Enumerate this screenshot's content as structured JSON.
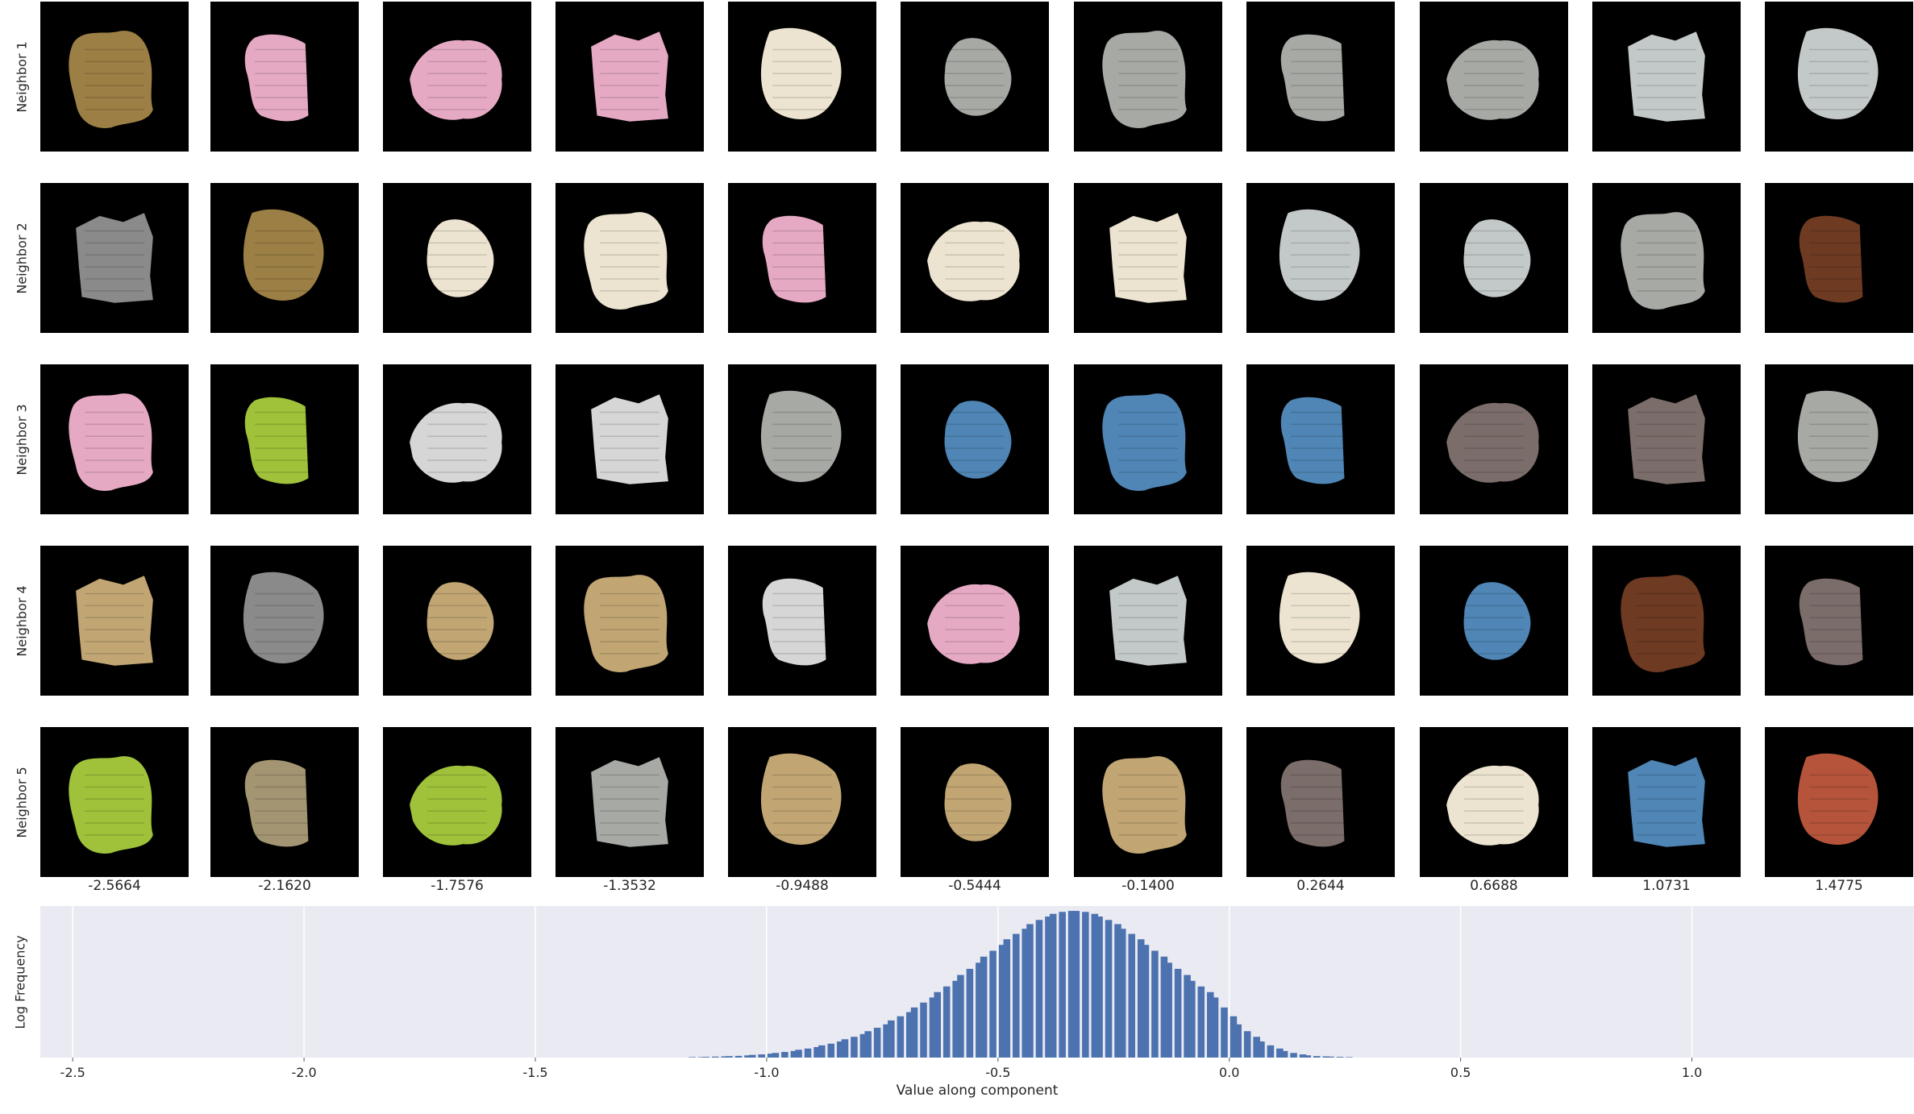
{
  "grid": {
    "row_labels": [
      "Neighbor 1",
      "Neighbor 2",
      "Neighbor 3",
      "Neighbor 4",
      "Neighbor 5"
    ],
    "column_values": [
      "-2.5664",
      "-2.1620",
      "-1.7576",
      "-1.3532",
      "-0.9488",
      "-0.5444",
      "-0.1400",
      "0.2644",
      "0.6688",
      "1.0731",
      "1.4775"
    ],
    "textures": {
      "olive_knit": "#9c7f45",
      "pink_knit": "#e6a9c4",
      "cream_relief": "#ece4d0",
      "gray_pattern": "#a7a9a5",
      "light_gray_stripes": "#c3c9c9",
      "gray_blob": "#8a8a8a",
      "brown_wood": "#6e3a22",
      "lime_knit": "#9fc23a",
      "white_grid": "#d6d6d6",
      "blue_crochet": "#4f86b6",
      "taupe_fabric": "#7b6d6a",
      "tan_fabric": "#c1a674",
      "lace_fabric": "#a39572",
      "rust_tiles": "#b5543a"
    },
    "cells": [
      [
        "olive_knit",
        "pink_knit",
        "pink_knit",
        "pink_knit",
        "cream_relief",
        "gray_pattern",
        "gray_pattern",
        "gray_pattern",
        "gray_pattern",
        "light_gray_stripes",
        "light_gray_stripes"
      ],
      [
        "gray_blob",
        "olive_knit",
        "cream_relief",
        "cream_relief",
        "pink_knit",
        "cream_relief",
        "cream_relief",
        "light_gray_stripes",
        "light_gray_stripes",
        "gray_pattern",
        "brown_wood"
      ],
      [
        "pink_knit",
        "lime_knit",
        "white_grid",
        "white_grid",
        "gray_pattern",
        "blue_crochet",
        "blue_crochet",
        "blue_crochet",
        "taupe_fabric",
        "taupe_fabric",
        "gray_pattern"
      ],
      [
        "tan_fabric",
        "gray_blob",
        "tan_fabric",
        "tan_fabric",
        "white_grid",
        "pink_knit",
        "light_gray_stripes",
        "cream_relief",
        "blue_crochet",
        "brown_wood",
        "taupe_fabric"
      ],
      [
        "lime_knit",
        "lace_fabric",
        "lime_knit",
        "gray_pattern",
        "tan_fabric",
        "tan_fabric",
        "tan_fabric",
        "taupe_fabric",
        "cream_relief",
        "blue_crochet",
        "rust_tiles"
      ]
    ]
  },
  "chart_data": {
    "type": "bar",
    "title": "",
    "xlabel": "Value along component",
    "ylabel": "Log Frequency",
    "xlim": [
      -2.57,
      1.48
    ],
    "ylim": [
      0,
      6.2
    ],
    "x_ticks": [
      "-2.5",
      "-2.0",
      "-1.5",
      "-1.0",
      "-0.5",
      "0.0",
      "0.5",
      "1.0"
    ],
    "grid": true,
    "colors": {
      "bar": "#4c72b0",
      "background": "#eaeaf2",
      "grid": "#ffffff"
    },
    "bin_width": 0.0166,
    "x": [
      -1.16,
      -1.14,
      -1.13,
      -1.11,
      -1.09,
      -1.08,
      -1.06,
      -1.04,
      -1.03,
      -1.01,
      -0.99,
      -0.98,
      -0.96,
      -0.94,
      -0.93,
      -0.91,
      -0.89,
      -0.88,
      -0.86,
      -0.84,
      -0.83,
      -0.81,
      -0.79,
      -0.78,
      -0.76,
      -0.74,
      -0.73,
      -0.71,
      -0.69,
      -0.68,
      -0.66,
      -0.64,
      -0.63,
      -0.61,
      -0.59,
      -0.58,
      -0.56,
      -0.54,
      -0.53,
      -0.51,
      -0.49,
      -0.48,
      -0.46,
      -0.44,
      -0.43,
      -0.41,
      -0.39,
      -0.38,
      -0.36,
      -0.34,
      -0.33,
      -0.31,
      -0.29,
      -0.28,
      -0.26,
      -0.24,
      -0.23,
      -0.21,
      -0.19,
      -0.18,
      -0.16,
      -0.14,
      -0.13,
      -0.11,
      -0.09,
      -0.08,
      -0.06,
      -0.04,
      -0.03,
      -0.01,
      0.01,
      0.02,
      0.04,
      0.06,
      0.07,
      0.09,
      0.11,
      0.12,
      0.14,
      0.16,
      0.17,
      0.19,
      0.21,
      0.22,
      0.24,
      0.26
    ],
    "values": [
      0.02,
      0.02,
      0.03,
      0.04,
      0.05,
      0.06,
      0.07,
      0.09,
      0.11,
      0.13,
      0.16,
      0.19,
      0.23,
      0.27,
      0.32,
      0.37,
      0.43,
      0.5,
      0.57,
      0.66,
      0.75,
      0.85,
      0.96,
      1.08,
      1.22,
      1.36,
      1.52,
      1.69,
      1.86,
      2.05,
      2.25,
      2.46,
      2.68,
      2.91,
      3.14,
      3.38,
      3.63,
      3.88,
      4.13,
      4.37,
      4.61,
      4.84,
      5.06,
      5.27,
      5.46,
      5.63,
      5.77,
      5.88,
      5.96,
      6.0,
      6.0,
      5.96,
      5.88,
      5.77,
      5.63,
      5.46,
      5.27,
      5.06,
      4.84,
      4.61,
      4.37,
      4.13,
      3.88,
      3.63,
      3.38,
      3.14,
      2.91,
      2.68,
      2.46,
      2.05,
      1.69,
      1.36,
      1.08,
      0.85,
      0.66,
      0.5,
      0.37,
      0.27,
      0.19,
      0.13,
      0.09,
      0.06,
      0.05,
      0.04,
      0.03,
      0.02
    ]
  }
}
